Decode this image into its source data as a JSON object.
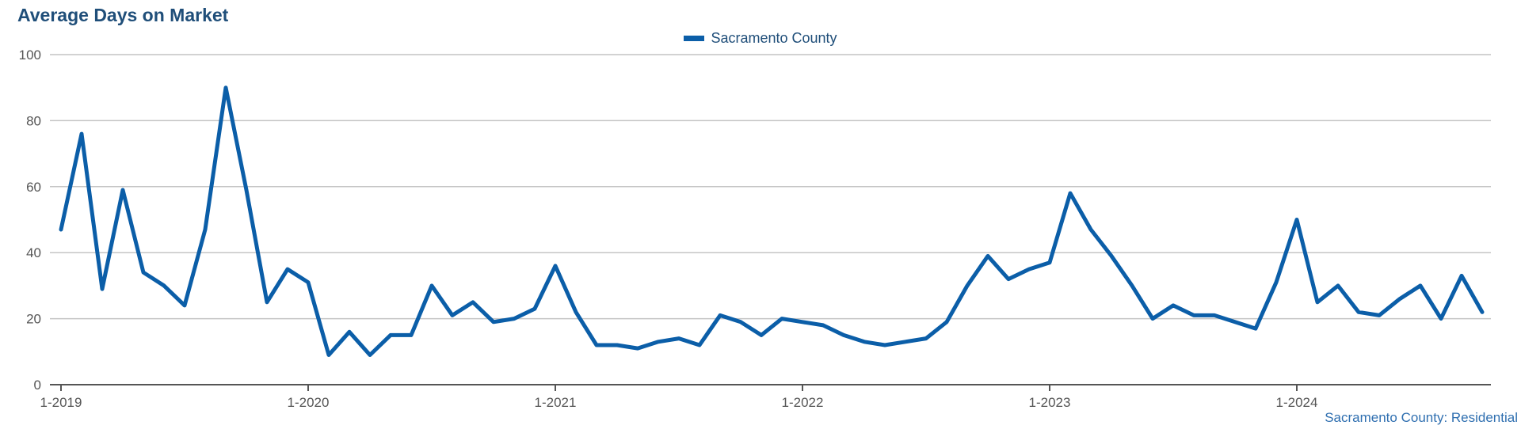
{
  "chart_data": {
    "type": "line",
    "title": "Average Days on Market",
    "xlabel": "",
    "ylabel": "",
    "ylim": [
      0,
      100
    ],
    "yticks": [
      0,
      20,
      40,
      60,
      80,
      100
    ],
    "xticks": [
      "1-2019",
      "1-2020",
      "1-2021",
      "1-2022",
      "1-2023",
      "1-2024"
    ],
    "grid": true,
    "legend_position": "top-center",
    "series": [
      {
        "name": "Sacramento County",
        "color": "#0b5ea8",
        "start_month": "1-2019",
        "values": [
          47,
          76,
          29,
          59,
          34,
          30,
          24,
          47,
          90,
          59,
          25,
          35,
          31,
          9,
          16,
          9,
          15,
          15,
          30,
          21,
          25,
          19,
          20,
          23,
          36,
          22,
          12,
          12,
          11,
          13,
          14,
          12,
          21,
          19,
          15,
          20,
          19,
          18,
          15,
          13,
          12,
          13,
          14,
          19,
          30,
          39,
          32,
          35,
          37,
          58,
          47,
          39,
          30,
          20,
          24,
          21,
          21,
          19,
          17,
          31,
          50,
          25,
          30,
          22,
          21,
          26,
          30,
          20,
          33,
          22
        ]
      }
    ],
    "footnote": "Sacramento County: Residential"
  }
}
